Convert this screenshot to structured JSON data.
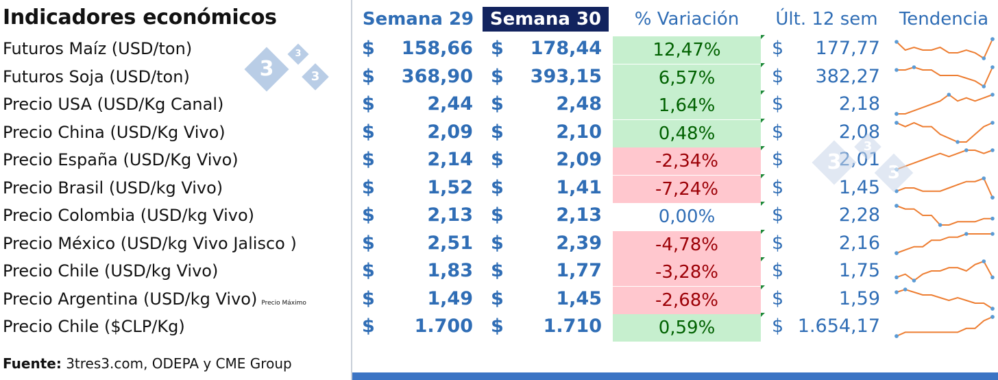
{
  "title": "Indicadores económicos",
  "headers": {
    "w29": "Semana 29",
    "w30": "Semana 30",
    "variation": "% Variación",
    "last12": "Últ. 12 sem",
    "trend": "Tendencia"
  },
  "currency_symbol": "$",
  "logo_text": "3",
  "source": {
    "bold": "Fuente:",
    "text": " 3tres3.com, ODEPA y CME Group"
  },
  "colors": {
    "accent": "#2f6db5",
    "selected_header": "#12235e",
    "positive_bg": "#c6efce",
    "positive_fg": "#006100",
    "negative_bg": "#ffc7ce",
    "negative_fg": "#9c0006",
    "sparkline": "#ed7d31"
  },
  "chart_data": {
    "type": "table",
    "columns": [
      "Indicador",
      "Semana 29",
      "Semana 30",
      "% Variación",
      "Últ. 12 sem",
      "Tendencia"
    ],
    "rows": [
      {
        "label": "Futuros Maíz (USD/ton)",
        "note": "",
        "w29": "158,66",
        "w30": "178,44",
        "var": "12,47%",
        "last12": "177,77",
        "sentiment": "pos",
        "trend": [
          6,
          3,
          4,
          3,
          3,
          4,
          2,
          2,
          3,
          2,
          0,
          7
        ]
      },
      {
        "label": "Futuros Soja (USD/ton)",
        "note": "",
        "w29": "368,90",
        "w30": "393,15",
        "var": "6,57%",
        "last12": "382,27",
        "sentiment": "pos",
        "trend": [
          6,
          6,
          7,
          6,
          6,
          4,
          4,
          4,
          3,
          2,
          0,
          7
        ]
      },
      {
        "label": "Precio USA (USD/Kg Canal)",
        "note": "",
        "w29": "2,44",
        "w30": "2,48",
        "var": "1,64%",
        "last12": "2,18",
        "sentiment": "pos",
        "trend": [
          0,
          0,
          1,
          2,
          3,
          4,
          6,
          4,
          5,
          4,
          5,
          6
        ]
      },
      {
        "label": "Precio China (USD/Kg Vivo)",
        "note": "",
        "w29": "2,09",
        "w30": "2,10",
        "var": "0,48%",
        "last12": "2,08",
        "sentiment": "pos",
        "trend": [
          6,
          5,
          6,
          5,
          5,
          3,
          2,
          1,
          1,
          3,
          5,
          6
        ]
      },
      {
        "label": "Precio España (USD/Kg Vivo)",
        "note": "",
        "w29": "2,14",
        "w30": "2,09",
        "var": "-2,34%",
        "last12": "2,01",
        "sentiment": "neg",
        "trend": [
          0,
          1,
          2,
          3,
          4,
          5,
          4,
          5,
          6,
          6,
          5,
          6
        ]
      },
      {
        "label": "Precio  Brasil (USD/kg Vivo)",
        "note": "",
        "w29": "1,52",
        "w30": "1,41",
        "var": "-7,24%",
        "last12": "1,45",
        "sentiment": "neg",
        "trend": [
          2,
          3,
          3,
          2,
          2,
          2,
          3,
          4,
          5,
          5,
          6,
          0
        ]
      },
      {
        "label": "Precio Colombia (USD/kg Vivo)",
        "note": "",
        "w29": "2,13",
        "w30": "2,13",
        "var": "0,00%",
        "last12": "2,28",
        "sentiment": "neu",
        "trend": [
          6,
          5,
          5,
          3,
          3,
          0,
          0,
          1,
          1,
          1,
          2,
          2
        ]
      },
      {
        "label": "Precio México (USD/kg Vivo Jalisco )",
        "note": "",
        "w29": "2,51",
        "w30": "2,39",
        "var": "-4,78%",
        "last12": "2,16",
        "sentiment": "neg",
        "trend": [
          0,
          1,
          2,
          2,
          4,
          4,
          5,
          5,
          6,
          6,
          6,
          6
        ]
      },
      {
        "label": "Precio Chile (USD/kg Vivo)",
        "note": "",
        "w29": "1,83",
        "w30": "1,77",
        "var": "-3,28%",
        "last12": "1,75",
        "sentiment": "neg",
        "trend": [
          1,
          2,
          0,
          2,
          3,
          3,
          4,
          4,
          3,
          5,
          6,
          1
        ]
      },
      {
        "label": "Precio Argentina (USD/kg Vivo)",
        "note": "Precio Máximo",
        "w29": "1,49",
        "w30": "1,45",
        "var": "-2,68%",
        "last12": "1,59",
        "sentiment": "neg",
        "trend": [
          6,
          7,
          6,
          5,
          5,
          4,
          3,
          4,
          3,
          2,
          2,
          0
        ]
      },
      {
        "label": "Precio Chile ($CLP/Kg)",
        "note": "",
        "w29": "1.700",
        "w30": "1.710",
        "var": "0,59%",
        "last12": "1.654,17",
        "sentiment": "pos",
        "trend": [
          0,
          1,
          1,
          1,
          1,
          1,
          1,
          1,
          2,
          2,
          4,
          5
        ]
      }
    ]
  }
}
